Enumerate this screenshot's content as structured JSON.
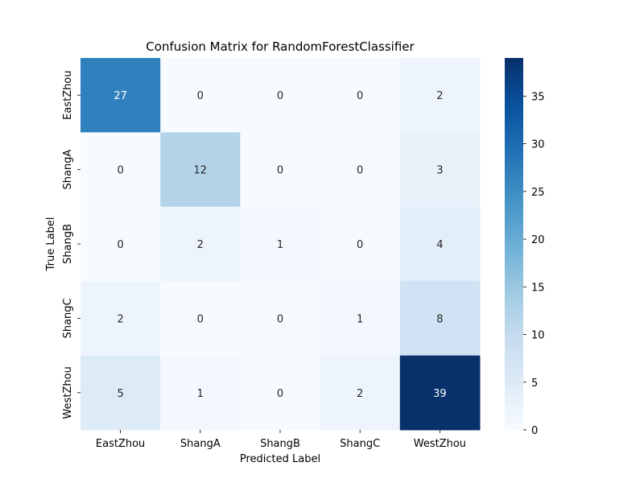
{
  "chart_data": {
    "type": "heatmap",
    "title": "Confusion Matrix for RandomForestClassifier",
    "xlabel": "Predicted Label",
    "ylabel": "True Label",
    "x_categories": [
      "EastZhou",
      "ShangA",
      "ShangB",
      "ShangC",
      "WestZhou"
    ],
    "y_categories": [
      "EastZhou",
      "ShangA",
      "ShangB",
      "ShangC",
      "WestZhou"
    ],
    "values": [
      [
        27,
        0,
        0,
        0,
        2
      ],
      [
        0,
        12,
        0,
        0,
        3
      ],
      [
        0,
        2,
        1,
        0,
        4
      ],
      [
        2,
        0,
        0,
        1,
        8
      ],
      [
        5,
        1,
        0,
        2,
        39
      ]
    ],
    "colormap": "Blues",
    "color_range": [
      0,
      39
    ],
    "colorbar_ticks": [
      0,
      5,
      10,
      15,
      20,
      25,
      30,
      35
    ],
    "grid": false
  }
}
